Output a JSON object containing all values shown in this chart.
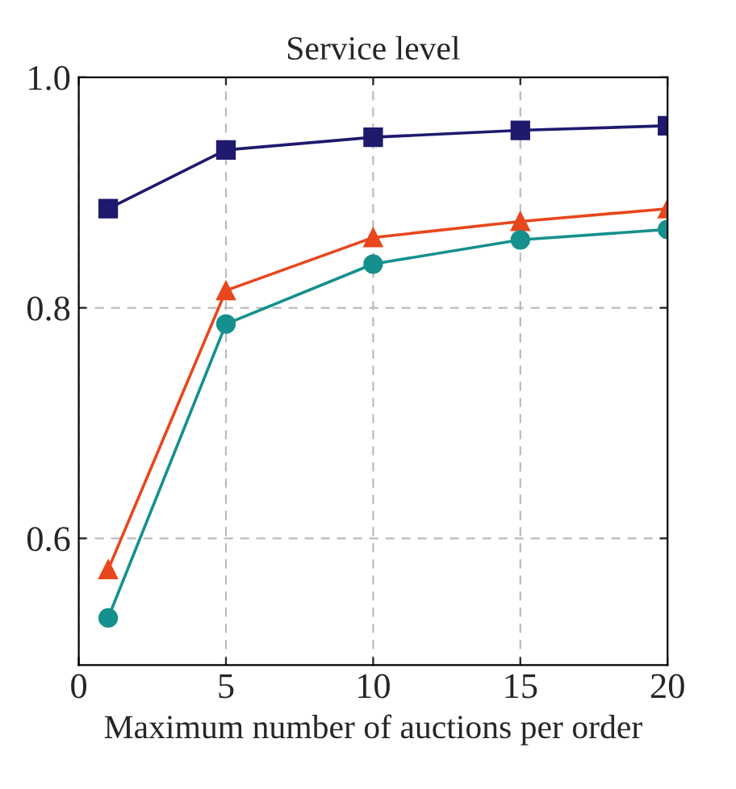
{
  "chart_data": {
    "type": "line",
    "title": "Service level",
    "xlabel": "Maximum number of auctions per order",
    "x": [
      1,
      5,
      10,
      15,
      20
    ],
    "series": [
      {
        "color": "#1f1a6e",
        "values": [
          0.886,
          0.937,
          0.948,
          0.954,
          0.958
        ],
        "marker": "square"
      },
      {
        "color": "#e8461c",
        "values": [
          0.573,
          0.815,
          0.861,
          0.875,
          0.886
        ],
        "marker": "triangle"
      },
      {
        "color": "#16908e",
        "values": [
          0.531,
          0.786,
          0.838,
          0.859,
          0.868
        ],
        "marker": "circle"
      }
    ],
    "xlim": [
      0,
      20
    ],
    "xticks": [
      0,
      5,
      10,
      15,
      20
    ],
    "ylim": [
      0.49,
      1.0
    ],
    "yticks": [
      0.6,
      0.8,
      {
        "value": 1.0,
        "label": "1.0"
      }
    ],
    "grid": true,
    "line_style": "solid",
    "legend": false
  }
}
